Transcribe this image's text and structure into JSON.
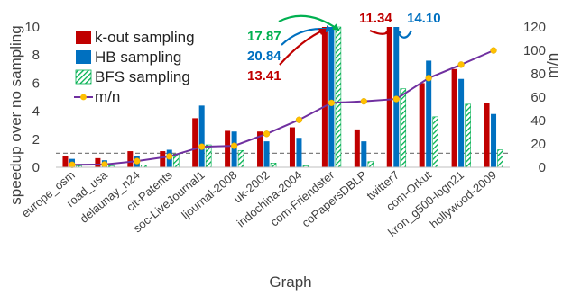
{
  "chart_data": {
    "type": "bar",
    "xlabel": "Graph",
    "ylabel": "speedup over no sampling",
    "y2label": "m/n",
    "ylim": [
      0,
      10
    ],
    "y2lim": [
      0,
      120
    ],
    "yticks": [
      "0",
      "2",
      "4",
      "6",
      "8",
      "10"
    ],
    "y2ticks": [
      "0",
      "20",
      "40",
      "60",
      "80",
      "100",
      "120"
    ],
    "reference_line": 1,
    "legend_position": "top-left",
    "categories": [
      "europe_osm",
      "road_usa",
      "delaunay_n24",
      "cit-Patents",
      "soc-LiveJournal1",
      "ljournal-2008",
      "uk-2002",
      "indochina-2004",
      "com-Friendster",
      "coPapersDBLP",
      "twitter7",
      "com-Orkut",
      "kron_g500-logn21",
      "hollywood-2009"
    ],
    "series": [
      {
        "name": "k-out sampling",
        "color": "#C00000",
        "pattern": "solid",
        "values": [
          0.8,
          0.65,
          1.15,
          1.15,
          3.5,
          2.6,
          2.55,
          2.85,
          13.41,
          2.7,
          11.34,
          6.0,
          7.0,
          4.6
        ]
      },
      {
        "name": "HB sampling",
        "color": "#0070C0",
        "pattern": "solid",
        "values": [
          0.6,
          0.5,
          0.8,
          1.25,
          4.4,
          2.55,
          1.85,
          2.1,
          20.84,
          1.85,
          14.1,
          7.6,
          6.3,
          3.8
        ]
      },
      {
        "name": "BFS sampling",
        "color": "#00B050",
        "pattern": "hatch",
        "values": [
          0.1,
          0.1,
          0.15,
          0.95,
          1.6,
          1.2,
          0.3,
          0.1,
          17.87,
          0.4,
          5.6,
          3.6,
          4.5,
          1.25
        ]
      }
    ],
    "line_series": {
      "name": "m/n",
      "axis": "right",
      "color": "#7030A0",
      "marker_color": "#FFC000",
      "values": [
        2.1,
        2.4,
        5.3,
        9.3,
        17.6,
        18.4,
        28.6,
        40.6,
        55.1,
        56.4,
        58.4,
        76.3,
        87.8,
        99.9
      ]
    },
    "annotations": [
      {
        "text": "17.87",
        "color": "#00B050",
        "category": "com-Friendster",
        "series": "BFS sampling"
      },
      {
        "text": "20.84",
        "color": "#0070C0",
        "category": "com-Friendster",
        "series": "HB sampling"
      },
      {
        "text": "13.41",
        "color": "#C00000",
        "category": "com-Friendster",
        "series": "k-out sampling"
      },
      {
        "text": "11.34",
        "color": "#C00000",
        "category": "twitter7",
        "series": "k-out sampling"
      },
      {
        "text": "14.10",
        "color": "#0070C0",
        "category": "twitter7",
        "series": "HB sampling"
      }
    ]
  }
}
